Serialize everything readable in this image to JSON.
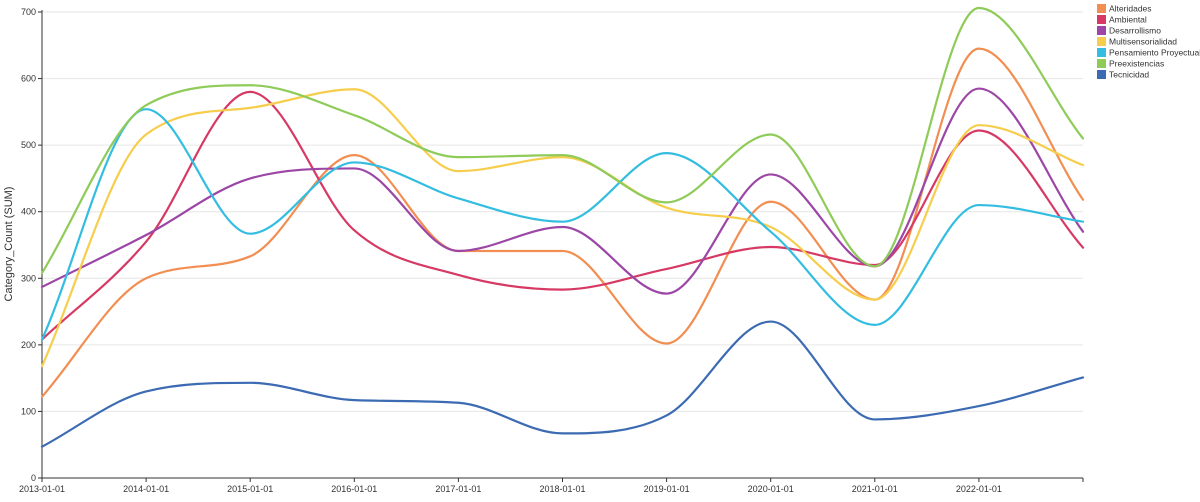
{
  "chart_data": {
    "type": "line",
    "ylabel": "Category_Count (SUM)",
    "ylim": [
      0,
      700
    ],
    "xlim": [
      "2013-01-01",
      "2023-01-01"
    ],
    "yticks": [
      0,
      100,
      200,
      300,
      400,
      500,
      600,
      700
    ],
    "x": [
      "2013-01-01",
      "2014-01-01",
      "2015-01-01",
      "2016-01-01",
      "2017-01-01",
      "2018-01-01",
      "2019-01-01",
      "2020-01-01",
      "2021-01-01",
      "2022-01-01",
      "2023-01-01"
    ],
    "xtick_labels": [
      "2013-01-01",
      "2014-01-01",
      "2015-01-01",
      "2016-01-01",
      "2017-01-01",
      "2018-01-01",
      "2019-01-01",
      "2020-01-01",
      "2021-01-01",
      "2022-01-01"
    ],
    "grid": true,
    "legend_position": "top-right",
    "series": [
      {
        "name": "Alteridades",
        "color": "#f28e52",
        "values": [
          122,
          300,
          333,
          485,
          341,
          341,
          202,
          415,
          268,
          645,
          418
        ]
      },
      {
        "name": "Ambiental",
        "color": "#d63a64",
        "values": [
          208,
          355,
          580,
          372,
          305,
          283,
          314,
          347,
          320,
          522,
          346
        ]
      },
      {
        "name": "Desarrollismo",
        "color": "#9c46a6",
        "values": [
          287,
          365,
          450,
          465,
          341,
          377,
          277,
          456,
          318,
          585,
          370
        ]
      },
      {
        "name": "Multisensorialidad",
        "color": "#f6cd4c",
        "values": [
          168,
          516,
          556,
          584,
          461,
          482,
          406,
          377,
          268,
          530,
          470
        ]
      },
      {
        "name": "Pensamiento Proyectual",
        "color": "#33bde0",
        "values": [
          208,
          554,
          367,
          474,
          420,
          385,
          488,
          370,
          230,
          410,
          385
        ]
      },
      {
        "name": "Preexistencias",
        "color": "#8fcb59",
        "values": [
          308,
          560,
          590,
          545,
          482,
          485,
          414,
          516,
          318,
          706,
          510
        ]
      },
      {
        "name": "Tecnicidad",
        "color": "#3c6bb3",
        "values": [
          47,
          130,
          143,
          117,
          113,
          67,
          94,
          235,
          88,
          108,
          151
        ]
      }
    ]
  }
}
